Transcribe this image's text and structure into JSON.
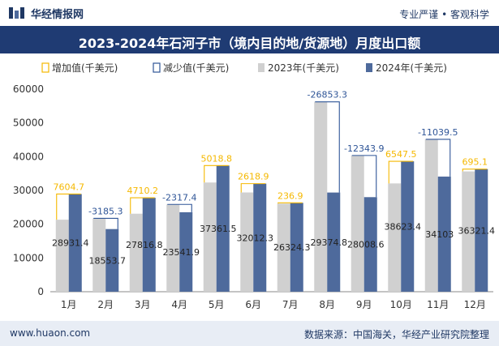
{
  "header": {
    "brand": "华经情报网",
    "tagline": "专业严谨 • 客观科学"
  },
  "chart_data": {
    "type": "bar",
    "title": "2023-2024年石河子市（境内目的地/货源地）月度出口额",
    "categories": [
      "1月",
      "2月",
      "3月",
      "4月",
      "5月",
      "6月",
      "7月",
      "8月",
      "9月",
      "10月",
      "11月",
      "12月"
    ],
    "series": [
      {
        "name": "2023年(千美元)",
        "values": [
          21326.7,
          21739.0,
          23106.6,
          25859.3,
          32342.7,
          29393.4,
          26087.4,
          56228.1,
          40352.5,
          32075.9,
          45142.5,
          35626.3
        ]
      },
      {
        "name": "2024年(千美元)",
        "values": [
          28931.4,
          18553.7,
          27816.8,
          23541.9,
          37361.5,
          32012.3,
          26324.3,
          29374.8,
          28008.6,
          38623.4,
          34103,
          36321.4
        ]
      }
    ],
    "change": {
      "labels": [
        "7604.7",
        "-3185.3",
        "4710.2",
        "-2317.4",
        "5018.8",
        "2618.9",
        "236.9",
        "-26853.3",
        "-12343.9",
        "6547.5",
        "-11039.5",
        "695.1"
      ],
      "values": [
        7604.7,
        -3185.3,
        4710.2,
        -2317.4,
        5018.8,
        2618.9,
        236.9,
        -26853.3,
        -12343.9,
        6547.5,
        -11039.5,
        695.1
      ]
    },
    "value_labels": [
      "28931.4",
      "18553.7",
      "27816.8",
      "23541.9",
      "37361.5",
      "32012.3",
      "26324.3",
      "29374.8",
      "28008.6",
      "38623.4",
      "34103",
      "36321.4"
    ],
    "legend": [
      "增加值(千美元)",
      "减少值(千美元)",
      "2023年(千美元)",
      "2024年(千美元)"
    ],
    "y_ticks": [
      "0",
      "10000",
      "20000",
      "30000",
      "40000",
      "50000",
      "60000"
    ],
    "ylim": [
      0,
      60000
    ],
    "colors": {
      "y2023": "#d0d0d0",
      "y2024": "#4e6a9c",
      "increase": "#f5b800",
      "decrease": "#2f5597"
    }
  },
  "footer": {
    "website": "www.huaon.com",
    "source": "数据来源：中国海关，华经产业研究院整理"
  }
}
